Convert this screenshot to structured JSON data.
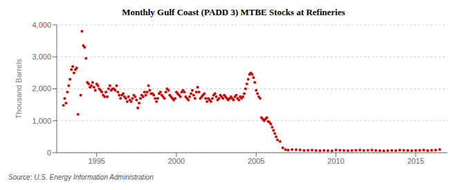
{
  "chart_data": {
    "type": "scatter",
    "title": "Monthly Gulf Coast (PADD 3) MTBE Stocks at Refineries",
    "ylabel": "Thousand Barrels",
    "source": "Source: U.S. Energy Information Administration",
    "color": "#cc0000",
    "grid": true,
    "xlim": [
      1992.5,
      2017.0
    ],
    "xticks": [
      1995,
      2000,
      2005,
      2010,
      2015
    ],
    "ylim": [
      0,
      4000
    ],
    "yticks": [
      0,
      {
        "value": 1000,
        "label": "1,000"
      },
      {
        "value": 2000,
        "label": "2,000"
      },
      {
        "value": 3000,
        "label": "3,000"
      },
      {
        "value": 4000,
        "label": "4,000"
      }
    ],
    "x": [
      1992.917,
      1993.0,
      1993.083,
      1993.167,
      1993.25,
      1993.333,
      1993.417,
      1993.5,
      1993.583,
      1993.667,
      1993.75,
      1993.833,
      1994.0,
      1994.083,
      1994.167,
      1994.25,
      1994.333,
      1994.417,
      1994.5,
      1994.583,
      1994.667,
      1994.75,
      1994.833,
      1994.917,
      1995.0,
      1995.083,
      1995.167,
      1995.25,
      1995.333,
      1995.417,
      1995.5,
      1995.583,
      1995.667,
      1995.75,
      1995.833,
      1995.917,
      1996.0,
      1996.083,
      1996.167,
      1996.25,
      1996.333,
      1996.417,
      1996.5,
      1996.583,
      1996.667,
      1996.75,
      1996.833,
      1996.917,
      1997.0,
      1997.083,
      1997.167,
      1997.25,
      1997.333,
      1997.417,
      1997.5,
      1997.583,
      1997.667,
      1997.75,
      1997.833,
      1997.917,
      1998.0,
      1998.083,
      1998.167,
      1998.25,
      1998.333,
      1998.417,
      1998.5,
      1998.583,
      1998.667,
      1998.75,
      1998.833,
      1998.917,
      1999.0,
      1999.083,
      1999.167,
      1999.25,
      1999.333,
      1999.417,
      1999.5,
      1999.583,
      1999.667,
      1999.75,
      1999.833,
      1999.917,
      2000.0,
      2000.083,
      2000.167,
      2000.25,
      2000.333,
      2000.417,
      2000.5,
      2000.583,
      2000.667,
      2000.75,
      2000.833,
      2000.917,
      2001.0,
      2001.083,
      2001.167,
      2001.25,
      2001.333,
      2001.417,
      2001.5,
      2001.583,
      2001.667,
      2001.75,
      2001.833,
      2001.917,
      2002.0,
      2002.083,
      2002.167,
      2002.25,
      2002.333,
      2002.417,
      2002.5,
      2002.583,
      2002.667,
      2002.75,
      2002.833,
      2002.917,
      2003.0,
      2003.083,
      2003.167,
      2003.25,
      2003.333,
      2003.417,
      2003.5,
      2003.583,
      2003.667,
      2003.75,
      2003.833,
      2003.917,
      2004.0,
      2004.083,
      2004.167,
      2004.25,
      2004.333,
      2004.417,
      2004.5,
      2004.583,
      2004.667,
      2004.75,
      2004.833,
      2004.917,
      2005.0,
      2005.083,
      2005.167,
      2005.25,
      2005.333,
      2005.417,
      2005.5,
      2005.583,
      2005.667,
      2005.75,
      2005.833,
      2005.917,
      2006.0,
      2006.083,
      2006.167,
      2006.25,
      2006.333,
      2006.5,
      2006.667,
      2006.833,
      2007.0,
      2007.25,
      2007.5,
      2007.75,
      2008.0,
      2008.25,
      2008.5,
      2008.75,
      2009.0,
      2009.25,
      2009.5,
      2009.75,
      2010.0,
      2010.25,
      2010.5,
      2010.75,
      2011.0,
      2011.25,
      2011.5,
      2011.75,
      2012.0,
      2012.25,
      2012.5,
      2012.75,
      2013.0,
      2013.25,
      2013.5,
      2013.75,
      2014.0,
      2014.25,
      2014.5,
      2014.75,
      2015.0,
      2015.25,
      2015.5,
      2015.75,
      2016.0,
      2016.25,
      2016.5
    ],
    "values": [
      1480,
      1700,
      1550,
      1900,
      2100,
      2300,
      2600,
      2700,
      2500,
      2600,
      2650,
      1200,
      1800,
      3800,
      3350,
      3300,
      2950,
      2200,
      2150,
      2050,
      2100,
      2200,
      2050,
      1950,
      2150,
      2100,
      2000,
      1950,
      1900,
      1800,
      1750,
      1900,
      1750,
      2000,
      2100,
      1950,
      2000,
      2000,
      1950,
      2100,
      1900,
      1800,
      1700,
      1800,
      1850,
      1750,
      1700,
      1600,
      1750,
      1650,
      1600,
      1700,
      1800,
      1750,
      1650,
      1400,
      1550,
      1700,
      1800,
      1750,
      1900,
      1800,
      1900,
      2100,
      1950,
      1850,
      1850,
      1800,
      1700,
      1600,
      1700,
      1850,
      1900,
      1800,
      1750,
      1700,
      1900,
      2000,
      1950,
      1800,
      1750,
      1700,
      1650,
      1700,
      1900,
      1850,
      1800,
      1750,
      1900,
      1950,
      1900,
      1750,
      1700,
      1650,
      1750,
      1850,
      1950,
      1800,
      1700,
      1900,
      2050,
      1900,
      1700,
      1750,
      1800,
      1850,
      1700,
      1600,
      1700,
      1650,
      1600,
      1700,
      1800,
      1850,
      1750,
      1650,
      1700,
      1800,
      1750,
      1700,
      1800,
      1750,
      1700,
      1650,
      1700,
      1750,
      1700,
      1650,
      1750,
      1800,
      1700,
      1650,
      1750,
      1700,
      1750,
      1850,
      2000,
      2150,
      2300,
      2450,
      2500,
      2450,
      2350,
      2200,
      1950,
      1850,
      1750,
      1700,
      1100,
      1050,
      1000,
      1050,
      1100,
      980,
      950,
      900,
      800,
      700,
      600,
      500,
      400,
      350,
      150,
      100,
      80,
      100,
      90,
      85,
      70,
      75,
      80,
      70,
      65,
      70,
      65,
      60,
      80,
      75,
      70,
      65,
      70,
      75,
      80,
      70,
      75,
      80,
      70,
      65,
      60,
      65,
      70,
      65,
      80,
      75,
      70,
      65,
      70,
      75,
      80,
      65,
      75,
      80,
      100
    ]
  }
}
